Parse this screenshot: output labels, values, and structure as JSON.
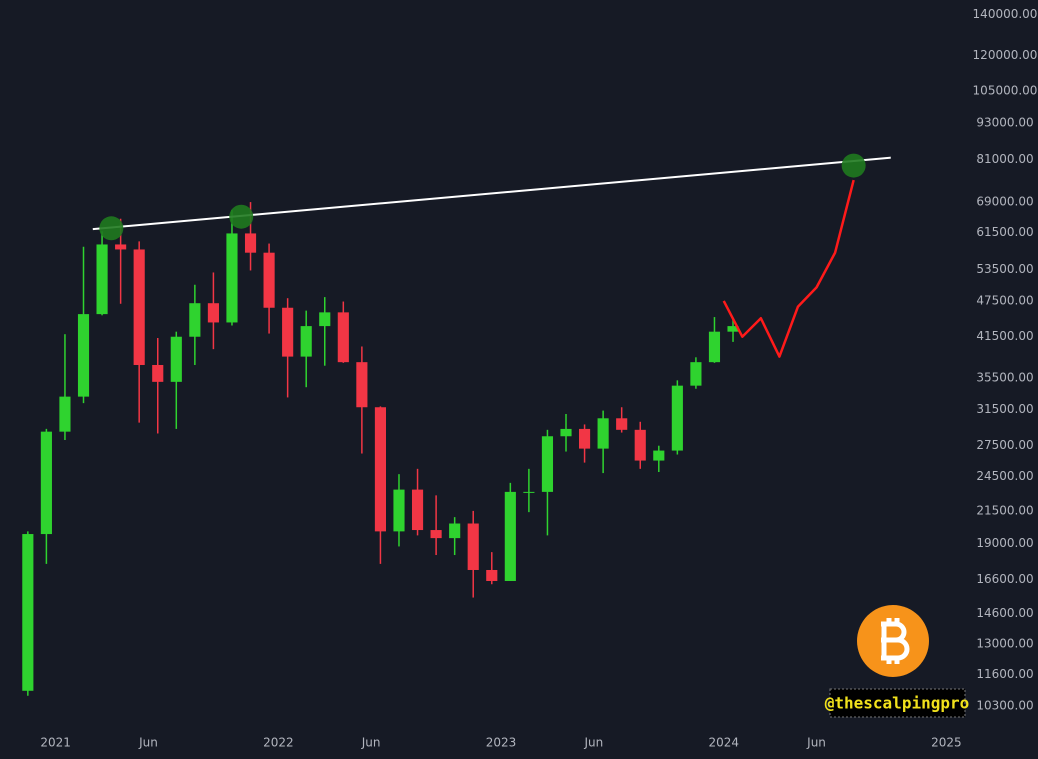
{
  "chart_data": {
    "type": "candlestick",
    "log_scale": true,
    "grid": false,
    "up_color": "#2fd32f",
    "down_color": "#f23645",
    "x": [
      "2020-11",
      "2020-12",
      "2021-01",
      "2021-02",
      "2021-03",
      "2021-04",
      "2021-05",
      "2021-06",
      "2021-07",
      "2021-08",
      "2021-09",
      "2021-10",
      "2021-11",
      "2021-12",
      "2022-01",
      "2022-02",
      "2022-03",
      "2022-04",
      "2022-05",
      "2022-06",
      "2022-07",
      "2022-08",
      "2022-09",
      "2022-10",
      "2022-11",
      "2022-12",
      "2023-01",
      "2023-02",
      "2023-03",
      "2023-04",
      "2023-05",
      "2023-06",
      "2023-07",
      "2023-08",
      "2023-09",
      "2023-10",
      "2023-11",
      "2023-12",
      "2024-01"
    ],
    "open": [
      10900,
      19700,
      29000,
      33100,
      45200,
      58800,
      57700,
      37300,
      35000,
      41500,
      47100,
      43800,
      61300,
      57000,
      46300,
      38500,
      43200,
      45500,
      37700,
      31800,
      19900,
      23300,
      20000,
      19400,
      20500,
      17200,
      16500,
      23100,
      23100,
      28500,
      29300,
      27200,
      30500,
      29200,
      26000,
      27000,
      34500,
      37700,
      42300
    ],
    "high": [
      19900,
      29300,
      41900,
      58300,
      61800,
      64800,
      59500,
      41300,
      42300,
      50500,
      52900,
      67000,
      69000,
      59000,
      48000,
      45800,
      48200,
      47400,
      40000,
      31900,
      24700,
      25200,
      22800,
      21000,
      21500,
      18400,
      23900,
      25200,
      29200,
      31000,
      29800,
      31400,
      31800,
      30100,
      27500,
      35200,
      38400,
      44700,
      44500
    ],
    "low": [
      10700,
      17600,
      28100,
      32300,
      45000,
      47000,
      30000,
      28800,
      29300,
      37300,
      39600,
      43300,
      53300,
      42000,
      33000,
      34300,
      37200,
      37600,
      26700,
      17600,
      18800,
      19600,
      18200,
      18200,
      15500,
      16300,
      16500,
      21400,
      19600,
      26900,
      25800,
      24800,
      28900,
      25200,
      24900,
      26600,
      34100,
      37600,
      40700
    ],
    "close": [
      19700,
      29000,
      33100,
      45200,
      58800,
      57700,
      37300,
      35000,
      41500,
      47100,
      43800,
      61300,
      57000,
      46300,
      38500,
      43200,
      45500,
      37700,
      31800,
      19900,
      23300,
      20000,
      19400,
      20500,
      17200,
      16500,
      23100,
      23100,
      28500,
      29300,
      27200,
      30500,
      29200,
      26000,
      27000,
      34500,
      37700,
      42300,
      43200
    ],
    "xlim": [
      "2020-10",
      "2025-02"
    ],
    "ylim": [
      9400,
      148000
    ],
    "xticks": [
      {
        "value": "2021-01",
        "label": "2021"
      },
      {
        "value": "2021-06",
        "label": "Jun"
      },
      {
        "value": "2022-01",
        "label": "2022"
      },
      {
        "value": "2022-06",
        "label": "Jun"
      },
      {
        "value": "2023-01",
        "label": "2023"
      },
      {
        "value": "2023-06",
        "label": "Jun"
      },
      {
        "value": "2024-01",
        "label": "2024"
      },
      {
        "value": "2024-06",
        "label": "Jun"
      },
      {
        "value": "2025-01",
        "label": "2025"
      }
    ],
    "yticks": [
      {
        "value": 140000,
        "label": "140000.00"
      },
      {
        "value": 120000,
        "label": "120000.00"
      },
      {
        "value": 105000,
        "label": "105000.00"
      },
      {
        "value": 93000,
        "label": "93000.00"
      },
      {
        "value": 81000,
        "label": "81000.00"
      },
      {
        "value": 69000,
        "label": "69000.00"
      },
      {
        "value": 61500,
        "label": "61500.00"
      },
      {
        "value": 53500,
        "label": "53500.00"
      },
      {
        "value": 47500,
        "label": "47500.00"
      },
      {
        "value": 41500,
        "label": "41500.00"
      },
      {
        "value": 35500,
        "label": "35500.00"
      },
      {
        "value": 31500,
        "label": "31500.00"
      },
      {
        "value": 27500,
        "label": "27500.00"
      },
      {
        "value": 24500,
        "label": "24500.00"
      },
      {
        "value": 21500,
        "label": "21500.00"
      },
      {
        "value": 19000,
        "label": "19000.00"
      },
      {
        "value": 16600,
        "label": "16600.00"
      },
      {
        "value": 14600,
        "label": "14600.00"
      },
      {
        "value": 13000,
        "label": "13000.00"
      },
      {
        "value": 11600,
        "label": "11600.00"
      },
      {
        "value": 10300,
        "label": "10300.00"
      }
    ],
    "trendline": {
      "color": "#ffffff",
      "x": [
        "2021-03",
        "2024-10"
      ],
      "values": [
        62300,
        81600
      ]
    },
    "highlights": {
      "color": "#1f7a1f",
      "x": [
        "2021-04",
        "2021-11",
        "2024-08"
      ],
      "values": [
        62500,
        65300,
        79200
      ]
    },
    "projection": {
      "color": "#ff1a1a",
      "x": [
        "2024-01",
        "2024-02",
        "2024-03",
        "2024-04",
        "2024-05",
        "2024-06",
        "2024-07",
        "2024-08"
      ],
      "values": [
        47500,
        41500,
        44500,
        38500,
        46500,
        50000,
        57000,
        75000
      ]
    },
    "watermark": "@thescalpingpro"
  }
}
